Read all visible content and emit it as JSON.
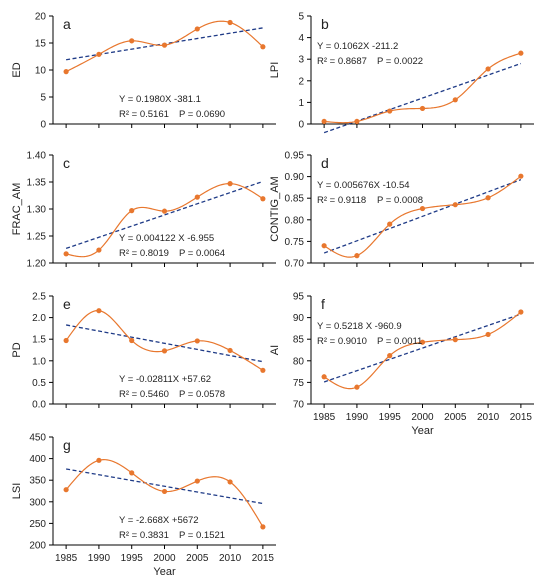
{
  "chart_data": [
    {
      "type": "line",
      "letter": "a",
      "ylabel": "ED",
      "xlabel": "",
      "x": [
        1985,
        1990,
        1995,
        2000,
        2005,
        2010,
        2015
      ],
      "xlim": [
        1983,
        2017
      ],
      "ylim": [
        0,
        20
      ],
      "yticks": [
        "0",
        "5",
        "10",
        "15",
        "20"
      ],
      "xticks": [],
      "series": [
        {
          "values": [
            9.7,
            12.9,
            15.4,
            14.6,
            17.6,
            18.8,
            14.3
          ]
        }
      ],
      "trend": {
        "x": [
          1985,
          2015
        ],
        "y": [
          11.9,
          17.8
        ]
      },
      "equation": "Y = 0.1980X -381.1",
      "r2": "R² = 0.5161",
      "p": "P = 0.0690"
    },
    {
      "type": "line",
      "letter": "b",
      "ylabel": "LPI",
      "xlabel": "",
      "x": [
        1985,
        1990,
        1995,
        2000,
        2005,
        2010,
        2015
      ],
      "xlim": [
        1983,
        2017
      ],
      "ylim": [
        0,
        5
      ],
      "yticks": [
        "0",
        "1",
        "2",
        "3",
        "4",
        "5"
      ],
      "xticks": [],
      "series": [
        {
          "values": [
            0.12,
            0.12,
            0.6,
            0.72,
            1.12,
            2.55,
            3.28
          ]
        }
      ],
      "trend": {
        "x": [
          1985,
          2015
        ],
        "y": [
          -0.4,
          2.8
        ]
      },
      "equation": "Y = 0.1062X -211.2",
      "r2": "R² = 0.8687",
      "p": "P = 0.0022"
    },
    {
      "type": "line",
      "letter": "c",
      "ylabel": "FRAC_AM",
      "xlabel": "",
      "x": [
        1985,
        1990,
        1995,
        2000,
        2005,
        2010,
        2015
      ],
      "xlim": [
        1983,
        2017
      ],
      "ylim": [
        1.2,
        1.4
      ],
      "yticks": [
        "1.20",
        "1.25",
        "1.30",
        "1.35",
        "1.40"
      ],
      "xticks": [],
      "series": [
        {
          "values": [
            1.217,
            1.224,
            1.297,
            1.296,
            1.322,
            1.347,
            1.319
          ]
        }
      ],
      "trend": {
        "x": [
          1985,
          2015
        ],
        "y": [
          1.227,
          1.351
        ]
      },
      "equation": "Y = 0.004122 X -6.955",
      "r2": "R² = 0.8019",
      "p": "P = 0.0064"
    },
    {
      "type": "line",
      "letter": "d",
      "ylabel": "CONTIG_AM",
      "xlabel": "",
      "x": [
        1985,
        1990,
        1995,
        2000,
        2005,
        2010,
        2015
      ],
      "xlim": [
        1983,
        2017
      ],
      "ylim": [
        0.7,
        0.95
      ],
      "yticks": [
        "0.70",
        "0.75",
        "0.80",
        "0.85",
        "0.90",
        "0.95"
      ],
      "xticks": [],
      "series": [
        {
          "values": [
            0.74,
            0.717,
            0.79,
            0.826,
            0.835,
            0.851,
            0.901
          ]
        }
      ],
      "trend": {
        "x": [
          1985,
          2015
        ],
        "y": [
          0.723,
          0.893
        ]
      },
      "equation": "Y = 0.005676X -10.54",
      "r2": "R² = 0.9118",
      "p": "P = 0.0008"
    },
    {
      "type": "line",
      "letter": "e",
      "ylabel": "PD",
      "xlabel": "",
      "x": [
        1985,
        1990,
        1995,
        2000,
        2005,
        2010,
        2015
      ],
      "xlim": [
        1983,
        2017
      ],
      "ylim": [
        0,
        2.5
      ],
      "yticks": [
        "0.0",
        "0.5",
        "1.0",
        "1.5",
        "2.0",
        "2.5"
      ],
      "xticks": [],
      "series": [
        {
          "values": [
            1.47,
            2.16,
            1.47,
            1.23,
            1.46,
            1.24,
            0.78
          ]
        }
      ],
      "trend": {
        "x": [
          1985,
          2015
        ],
        "y": [
          1.83,
          0.98
        ]
      },
      "equation": "Y = -0.02811X +57.62",
      "r2": "R² = 0.5460",
      "p": "P = 0.0578"
    },
    {
      "type": "line",
      "letter": "f",
      "ylabel": "AI",
      "xlabel": "Year",
      "x": [
        1985,
        1990,
        1995,
        2000,
        2005,
        2010,
        2015
      ],
      "xlim": [
        1983,
        2017
      ],
      "ylim": [
        70,
        95
      ],
      "yticks": [
        "70",
        "75",
        "80",
        "85",
        "90",
        "95"
      ],
      "xticks": [
        "1985",
        "1990",
        "1995",
        "2000",
        "2005",
        "2010",
        "2015"
      ],
      "series": [
        {
          "values": [
            76.3,
            73.9,
            81.2,
            84.3,
            84.9,
            86.1,
            91.3
          ]
        }
      ],
      "trend": {
        "x": [
          1985,
          2015
        ],
        "y": [
          75.1,
          90.8
        ]
      },
      "equation": "Y = 0.5218 X -960.9",
      "r2": "R² = 0.9010",
      "p": "P = 0.0011"
    },
    {
      "type": "line",
      "letter": "g",
      "ylabel": "LSI",
      "xlabel": "Year",
      "x": [
        1985,
        1990,
        1995,
        2000,
        2005,
        2010,
        2015
      ],
      "xlim": [
        1983,
        2017
      ],
      "ylim": [
        200,
        450
      ],
      "yticks": [
        "200",
        "250",
        "300",
        "350",
        "400",
        "450"
      ],
      "xticks": [
        "1985",
        "1990",
        "1995",
        "2000",
        "2005",
        "2010",
        "2015"
      ],
      "series": [
        {
          "values": [
            328,
            396,
            367,
            324,
            348,
            346,
            242
          ]
        }
      ],
      "trend": {
        "x": [
          1985,
          2015
        ],
        "y": [
          376,
          296
        ]
      },
      "equation": "Y = -2.668X +5672",
      "r2": "R² = 0.3831",
      "p": "P = 0.1521"
    }
  ],
  "style": {
    "series_color": "#e8772e",
    "trend_color": "#1f3b87",
    "axis_color": "#000000"
  }
}
